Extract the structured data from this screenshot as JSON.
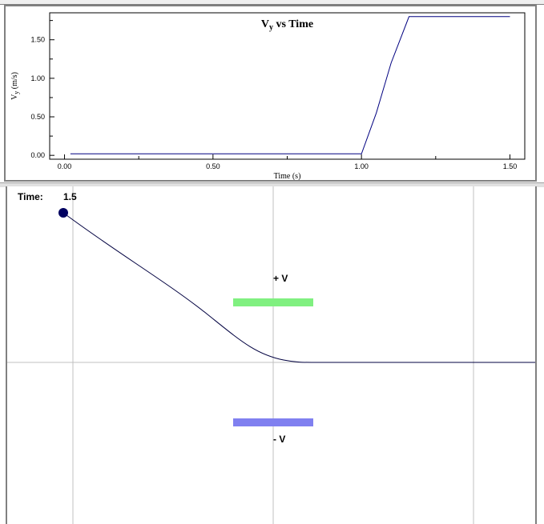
{
  "top_strip": {
    "text": ""
  },
  "chart_data": {
    "type": "line",
    "title": "Vy vs Time",
    "title_main": "V",
    "title_sub": "y",
    "title_rest": " vs Time",
    "xlabel": "Time (s)",
    "ylabel_main": "V",
    "ylabel_sub": "y",
    "ylabel_rest": " (m/s)",
    "xlim": [
      -0.05,
      1.55
    ],
    "ylim": [
      -0.05,
      1.85
    ],
    "x_ticks": [
      "0.00",
      "0.50",
      "1.00",
      "1.50"
    ],
    "x_tick_values": [
      0,
      0.5,
      1.0,
      1.5
    ],
    "y_ticks": [
      "0.00",
      "0.50",
      "1.00",
      "1.50"
    ],
    "y_tick_values": [
      0,
      0.5,
      1.0,
      1.5
    ],
    "grid": false,
    "series": [
      {
        "color": "#000080",
        "x": [
          0.02,
          0.5,
          1.0,
          1.05,
          1.1,
          1.16,
          1.3,
          1.5
        ],
        "y": [
          0.02,
          0.02,
          0.02,
          0.55,
          1.2,
          1.8,
          1.8,
          1.8
        ]
      }
    ]
  },
  "simulation": {
    "time_label": "Time:",
    "time_value": "1.5",
    "plus_label": "+ V",
    "minus_label": "- V",
    "colors": {
      "plus_bar": "#80f080",
      "minus_bar": "#8080f0",
      "ball": "#000060",
      "path": "#000040",
      "grid": "#c0c0c0"
    }
  }
}
